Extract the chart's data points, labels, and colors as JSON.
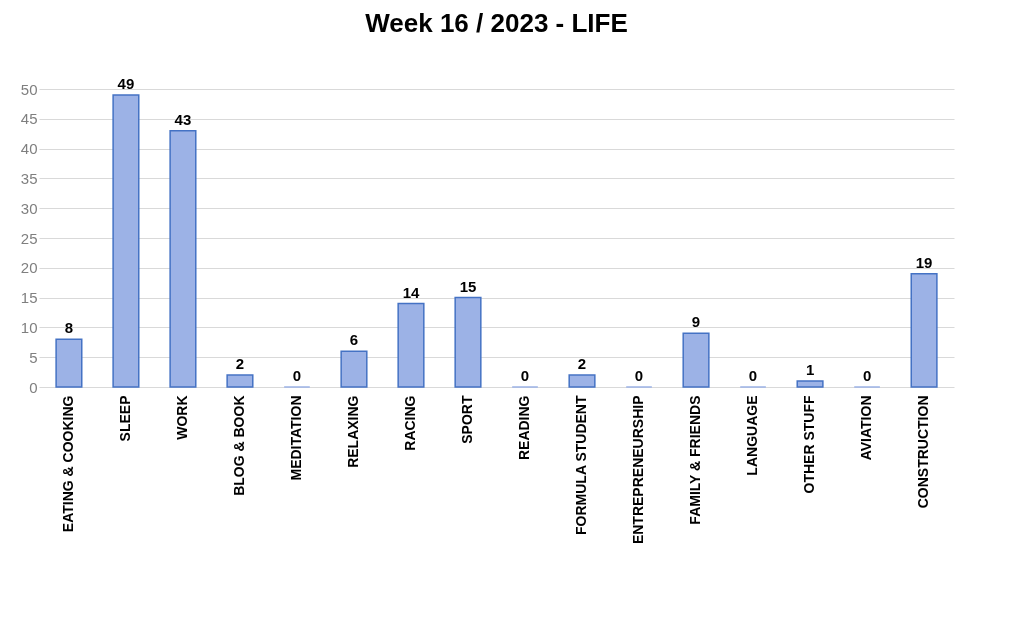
{
  "chart_data": {
    "type": "bar",
    "title": "Week 16 / 2023 - LIFE",
    "categories": [
      "EATING & COOKING",
      "SLEEP",
      "WORK",
      "BLOG & BOOK",
      "MEDITATION",
      "RELAXING",
      "RACING",
      "SPORT",
      "READING",
      "FORMULA STUDENT",
      "ENTREPRENEURSHIP",
      "FAMILY & FRIENDS",
      "LANGUAGE",
      "OTHER STUFF",
      "AVIATION",
      "CONSTRUCTION"
    ],
    "values": [
      8,
      49,
      43,
      2,
      0,
      6,
      14,
      15,
      0,
      2,
      0,
      9,
      0,
      1,
      0,
      19
    ],
    "color": "#9cb2e6",
    "ylim": [
      0,
      50
    ],
    "yticks": [
      0,
      5,
      10,
      15,
      20,
      25,
      30,
      35,
      40,
      45,
      50
    ],
    "grid": "y",
    "data_labels": true
  }
}
